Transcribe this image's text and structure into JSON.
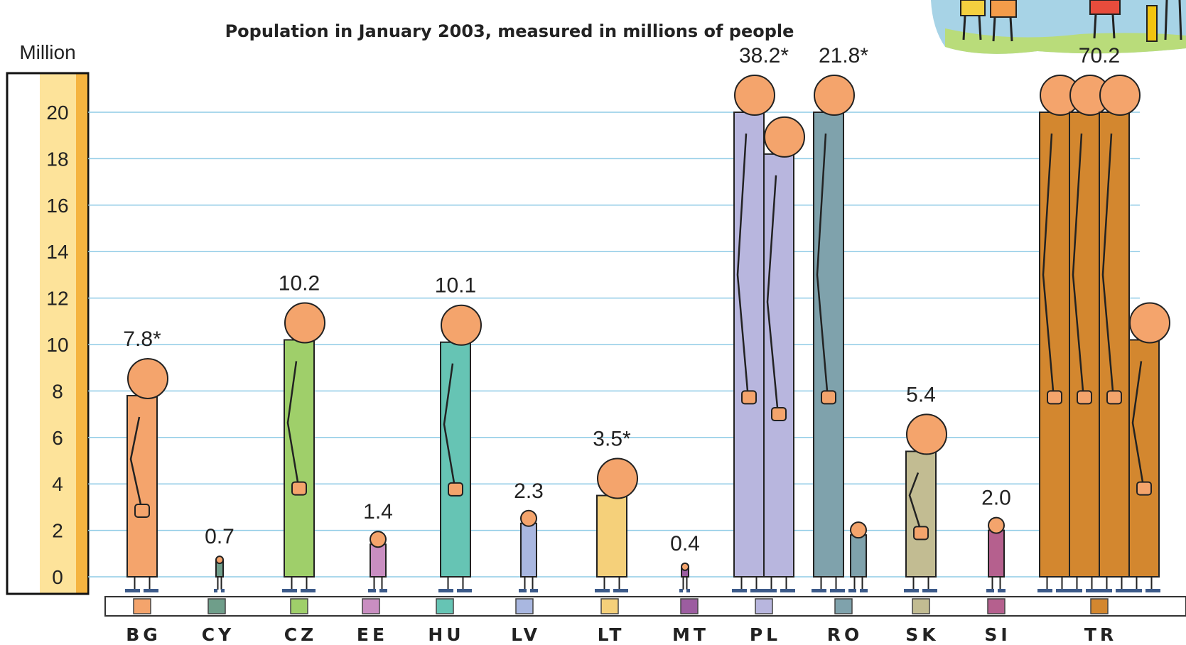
{
  "chart_data": {
    "type": "bar",
    "title": "Population in January 2003, measured in millions of people",
    "ylabel": "Million",
    "ylim": [
      0,
      20
    ],
    "yticks": [
      0,
      2,
      4,
      6,
      8,
      10,
      12,
      14,
      16,
      18,
      20
    ],
    "grid": true,
    "categories": [
      "BG",
      "CY",
      "CZ",
      "EE",
      "HU",
      "LV",
      "LT",
      "MT",
      "PL",
      "RO",
      "SK",
      "SI",
      "TR"
    ],
    "values": [
      7.8,
      0.7,
      10.2,
      1.4,
      10.1,
      2.3,
      3.5,
      0.4,
      38.2,
      21.8,
      5.4,
      2.0,
      70.2
    ],
    "value_labels": [
      "7.8*",
      "0.7",
      "10.2",
      "1.4",
      "10.1",
      "2.3",
      "3.5*",
      "0.4",
      "38.2*",
      "21.8*",
      "5.4",
      "2.0",
      "70.2"
    ],
    "colors": [
      "#f4a46c",
      "#6f9e8a",
      "#9fcf6a",
      "#c98ec1",
      "#66c4b4",
      "#a9b7e0",
      "#f5d07a",
      "#9c5da0",
      "#b8b6de",
      "#7fa2ac",
      "#c2bc92",
      "#b5608e",
      "#d3872f"
    ],
    "legend_placement": "bottom"
  }
}
